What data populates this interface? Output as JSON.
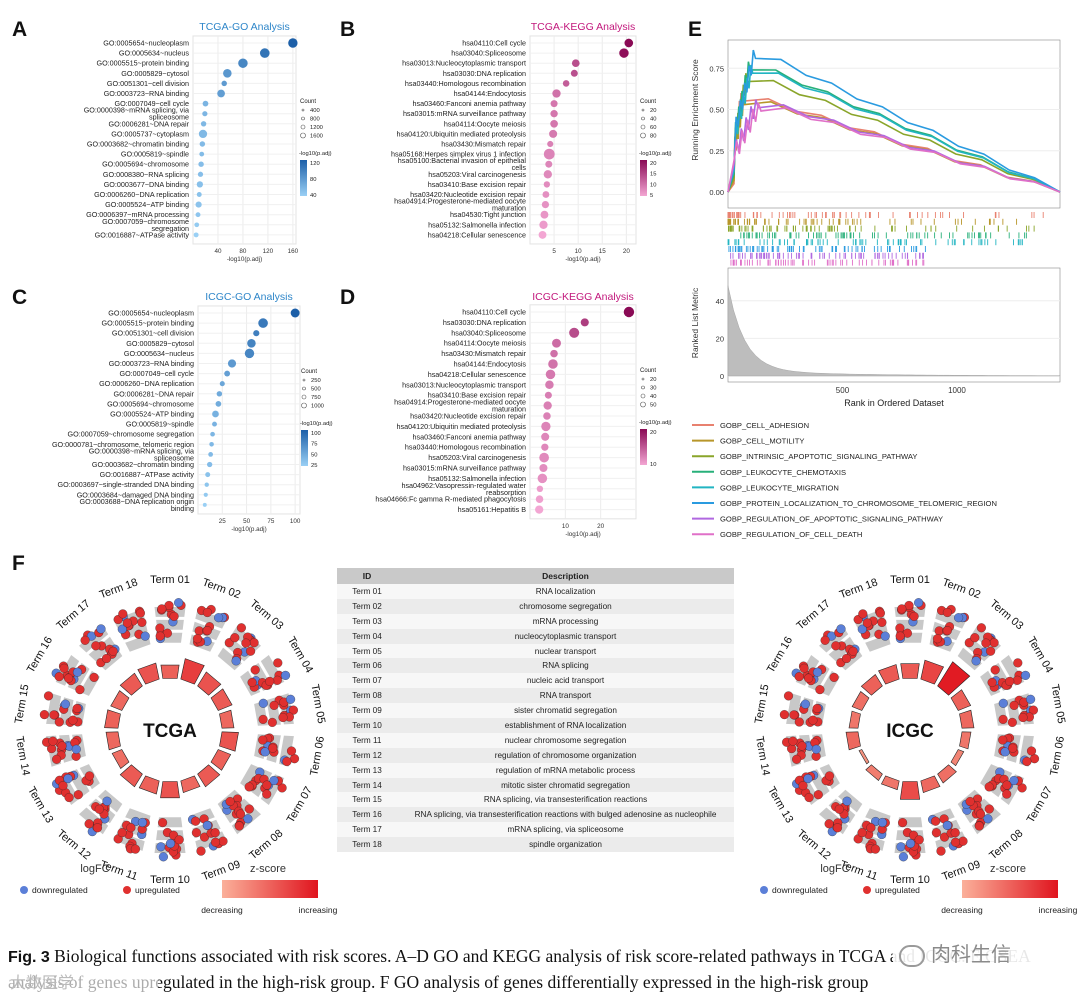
{
  "panel_labels": {
    "A": "A",
    "B": "B",
    "C": "C",
    "D": "D",
    "E": "E",
    "F": "F"
  },
  "dotplot_tcga_go": {
    "type": "scatter",
    "title": "TCGA-GO Analysis",
    "title_color": "#2e86c9",
    "xlabel": "-log10(p.adj)",
    "xlim": [
      0,
      165
    ],
    "xticks": [
      40,
      80,
      120,
      160
    ],
    "terms": [
      "GO:0005654~nucleoplasm",
      "GO:0005634~nucleus",
      "GO:0005515~protein binding",
      "GO:0005829~cytosol",
      "GO:0051301~cell division",
      "GO:0003723~RNA binding",
      "GO:0007049~cell cycle",
      "GO:0000398~mRNA splicing, via spliceosome",
      "GO:0006281~DNA repair",
      "GO:0005737~cytoplasm",
      "GO:0003682~chromatin binding",
      "GO:0005819~spindle",
      "GO:0005694~chromosome",
      "GO:0008380~RNA splicing",
      "GO:0003677~DNA binding",
      "GO:0006260~DNA replication",
      "GO:0005524~ATP binding",
      "GO:0006397~mRNA processing",
      "GO:0007059~chromosome segregation",
      "GO:0016887~ATPase activity"
    ],
    "values": [
      160,
      115,
      80,
      55,
      50,
      45,
      20,
      19,
      17,
      16,
      15,
      14,
      13,
      12,
      11,
      10,
      9,
      8,
      6,
      5
    ],
    "counts": [
      1550,
      1650,
      1600,
      1200,
      300,
      900,
      350,
      250,
      280,
      1100,
      300,
      180,
      290,
      260,
      480,
      200,
      450,
      200,
      170,
      200
    ],
    "legend_count_title": "Count",
    "legend_counts": [
      "400",
      "800",
      "1200",
      "1600"
    ],
    "legend_color_title": "-log10(p.adj)",
    "legend_color_ticks": [
      "120",
      "80",
      "40"
    ],
    "color_low": "#9ad0f5",
    "color_high": "#1c5fa8"
  },
  "dotplot_tcga_kegg": {
    "type": "scatter",
    "title": "TCGA-KEGG Analysis",
    "title_color": "#c2187c",
    "xlabel": "-log10(p.adj)",
    "xlim": [
      0,
      22
    ],
    "xticks": [
      5,
      10,
      15,
      20
    ],
    "terms": [
      "hsa04110:Cell cycle",
      "hsa03040:Spliceosome",
      "hsa03013:Nucleocytoplasmic transport",
      "hsa03030:DNA replication",
      "hsa03440:Homologous recombination",
      "hsa04144:Endocytosis",
      "hsa03460:Fanconi anemia pathway",
      "hsa03015:mRNA surveillance pathway",
      "hsa04114:Oocyte meiosis",
      "hsa04120:Ubiquitin mediated proteolysis",
      "hsa03430:Mismatch repair",
      "hsa05168:Herpes simplex virus 1 infection",
      "hsa05100:Bacterial invasion of epithelial cells",
      "hsa05203:Viral carcinogenesis",
      "hsa03410:Base excision repair",
      "hsa03420:Nucleotide excision repair",
      "hsa04914:Progesterone-mediated oocyte maturation",
      "hsa04530:Tight junction",
      "hsa05132:Salmonella infection",
      "hsa04218:Cellular senescence"
    ],
    "values": [
      20.5,
      19.5,
      9.5,
      9.2,
      7.5,
      5.5,
      5.0,
      5.0,
      5.0,
      4.8,
      4.2,
      4.0,
      3.9,
      3.7,
      3.5,
      3.3,
      3.2,
      3.0,
      2.8,
      2.6
    ],
    "counts": [
      55,
      70,
      40,
      30,
      25,
      50,
      30,
      35,
      40,
      45,
      20,
      100,
      30,
      50,
      22,
      28,
      33,
      42,
      50,
      42
    ],
    "legend_count_title": "Count",
    "legend_counts": [
      "20",
      "40",
      "60",
      "80"
    ],
    "legend_color_title": "-log10(p.adj)",
    "legend_color_ticks": [
      "20",
      "15",
      "10",
      "5"
    ],
    "color_low": "#f3a6d3",
    "color_high": "#8a0a55"
  },
  "dotplot_icgc_go": {
    "type": "scatter",
    "title": "ICGC-GO Analysis",
    "title_color": "#2e86c9",
    "xlabel": "-log10(p.adj)",
    "xlim": [
      0,
      105
    ],
    "xticks": [
      25,
      50,
      75,
      100
    ],
    "terms": [
      "GO:0005654~nucleoplasm",
      "GO:0005515~protein binding",
      "GO:0051301~cell division",
      "GO:0005829~cytosol",
      "GO:0005634~nucleus",
      "GO:0003723~RNA binding",
      "GO:0007049~cell cycle",
      "GO:0006260~DNA replication",
      "GO:0006281~DNA repair",
      "GO:0005694~chromosome",
      "GO:0005524~ATP binding",
      "GO:0005819~spindle",
      "GO:0007059~chromosome segregation",
      "GO:0000781~chromosome, telomeric region",
      "GO:0000398~mRNA splicing, via spliceosome",
      "GO:0003682~chromatin binding",
      "GO:0016887~ATPase activity",
      "GO:0003697~single-stranded DNA binding",
      "GO:0003684~damaged DNA binding",
      "GO:0003688~DNA replication origin binding"
    ],
    "values": [
      100,
      67,
      60,
      55,
      53,
      35,
      30,
      25,
      22,
      21,
      18,
      17,
      15,
      14,
      13,
      12,
      10,
      9,
      8,
      7
    ],
    "counts": [
      900,
      1100,
      300,
      800,
      1050,
      700,
      250,
      150,
      200,
      230,
      400,
      130,
      110,
      100,
      120,
      180,
      140,
      80,
      70,
      50
    ],
    "legend_count_title": "Count",
    "legend_counts": [
      "250",
      "500",
      "750",
      "1000"
    ],
    "legend_color_title": "-log10(p.adj)",
    "legend_color_ticks": [
      "100",
      "75",
      "50",
      "25"
    ],
    "color_low": "#9ad0f5",
    "color_high": "#1c5fa8"
  },
  "dotplot_icgc_kegg": {
    "type": "scatter",
    "title": "ICGC-KEGG Analysis",
    "title_color": "#c2187c",
    "xlabel": "-log10(p.adj)",
    "xlim": [
      0,
      30
    ],
    "xticks": [
      10,
      20
    ],
    "terms": [
      "hsa04110:Cell cycle",
      "hsa03030:DNA replication",
      "hsa03040:Spliceosome",
      "hsa04114:Oocyte meiosis",
      "hsa03430:Mismatch repair",
      "hsa04144:Endocytosis",
      "hsa04218:Cellular senescence",
      "hsa03013:Nucleocytoplasmic transport",
      "hsa03410:Base excision repair",
      "hsa04914:Progesterone-mediated oocyte maturation",
      "hsa03420:Nucleotide excision repair",
      "hsa04120:Ubiquitin mediated proteolysis",
      "hsa03460:Fanconi anemia pathway",
      "hsa03440:Homologous recombination",
      "hsa05203:Viral carcinogenesis",
      "hsa03015:mRNA surveillance pathway",
      "hsa05132:Salmonella infection",
      "hsa04962:Vasopressin-regulated water reabsorption",
      "hsa04666:Fc gamma R-mediated phagocytosis",
      "hsa05161:Hepatitis B"
    ],
    "values": [
      28,
      15.5,
      12.5,
      7.5,
      6.8,
      6.5,
      5.8,
      5.5,
      5.2,
      5.0,
      4.8,
      4.5,
      4.3,
      4.2,
      4.0,
      3.8,
      3.5,
      2.8,
      2.7,
      2.6
    ],
    "counts": [
      60,
      30,
      55,
      40,
      25,
      48,
      48,
      35,
      20,
      33,
      25,
      45,
      30,
      22,
      50,
      30,
      48,
      15,
      25,
      32
    ],
    "legend_count_title": "Count",
    "legend_counts": [
      "20",
      "30",
      "40",
      "50"
    ],
    "legend_color_title": "-log10(p.adj)",
    "legend_color_ticks": [
      "20",
      "10"
    ],
    "color_low": "#f3a6d3",
    "color_high": "#8a0a55"
  },
  "gsea": {
    "type": "line",
    "ylabel_top": "Running Enrichment Score",
    "ylabel_bottom": "Ranked List Metric",
    "xlabel": "Rank in Ordered Dataset",
    "yticks_top": [
      "0.00",
      "0.25",
      "0.50",
      "0.75"
    ],
    "yticks_bottom": [
      "0",
      "20",
      "40"
    ],
    "xticks": [
      "500",
      "1000"
    ],
    "xlim": [
      0,
      1450
    ],
    "series": [
      {
        "name": "GOBP_CELL_ADHESION",
        "color": "#e8816f",
        "peak": 0.6
      },
      {
        "name": "GOBP_CELL_MOTILITY",
        "color": "#b8962a",
        "peak": 0.58
      },
      {
        "name": "GOBP_INTRINSIC_APOPTOTIC_SIGNALING_PATHWAY",
        "color": "#8aa52a",
        "peak": 0.72
      },
      {
        "name": "GOBP_LEUKOCYTE_CHEMOTAXIS",
        "color": "#28b07a",
        "peak": 0.79
      },
      {
        "name": "GOBP_LEUKOCYTE_MIGRATION",
        "color": "#22b5c2",
        "peak": 0.77
      },
      {
        "name": "GOBP_PROTEIN_LOCALIZATION_TO_CHROMOSOME_TELOMERIC_REGION",
        "color": "#2a9be0",
        "peak": 0.86
      },
      {
        "name": "GOBP_REGULATION_OF_APOPTOTIC_SIGNALING_PATHWAY",
        "color": "#b068e0",
        "peak": 0.56
      },
      {
        "name": "GOBP_REGULATION_OF_CELL_DEATH",
        "color": "#e070c8",
        "peak": 0.54
      }
    ]
  },
  "term_table": {
    "headers": [
      "ID",
      "Description"
    ],
    "rows": [
      [
        "Term 01",
        "RNA localization"
      ],
      [
        "Term 02",
        "chromosome segregation"
      ],
      [
        "Term 03",
        "mRNA processing"
      ],
      [
        "Term 04",
        "nucleocytoplasmic transport"
      ],
      [
        "Term 05",
        "nuclear transport"
      ],
      [
        "Term 06",
        "RNA splicing"
      ],
      [
        "Term 07",
        "nucleic acid transport"
      ],
      [
        "Term 08",
        "RNA transport"
      ],
      [
        "Term 09",
        "sister chromatid segregation"
      ],
      [
        "Term 10",
        "establishment of RNA localization"
      ],
      [
        "Term 11",
        "nuclear chromosome segregation"
      ],
      [
        "Term 12",
        "regulation of chromosome organization"
      ],
      [
        "Term 13",
        "regulation of mRNA metabolic process"
      ],
      [
        "Term 14",
        "mitotic sister chromatid segregation"
      ],
      [
        "Term 15",
        "RNA splicing, via transesterification reactions"
      ],
      [
        "Term 16",
        "RNA splicing, via transesterification reactions with bulged adenosine as nucleophile"
      ],
      [
        "Term 17",
        "mRNA splicing, via spliceosome"
      ],
      [
        "Term 18",
        "spindle organization"
      ]
    ]
  },
  "circos": {
    "terms": [
      "Term 01",
      "Term 02",
      "Term 03",
      "Term 04",
      "Term 05",
      "Term 06",
      "Term 07",
      "Term 08",
      "Term 09",
      "Term 10",
      "Term 11",
      "Term 12",
      "Term 13",
      "Term 14",
      "Term 15",
      "Term 16",
      "Term 17",
      "Term 18"
    ],
    "tcga": {
      "label": "TCGA",
      "zscore": [
        0.45,
        0.7,
        0.55,
        0.5,
        0.4,
        0.55,
        0.45,
        0.5,
        0.4,
        0.55,
        0.45,
        0.5,
        0.35,
        0.4,
        0.45,
        0.4,
        0.5,
        0.55
      ]
    },
    "icgc": {
      "label": "ICGC",
      "zscore": [
        0.5,
        0.65,
        0.95,
        0.45,
        0.4,
        0.3,
        0.2,
        0.35,
        0.4,
        0.6,
        0.3,
        0.25,
        0.1,
        0.4,
        0.3,
        0.35,
        0.45,
        0.5
      ]
    },
    "legend": {
      "logfc_title": "logFC",
      "down": "downregulated",
      "up": "upregulated",
      "z_title": "z-score",
      "dec": "decreasing",
      "inc": "increasing",
      "down_color": "#5b7fd8",
      "up_color": "#e0302f"
    }
  },
  "caption": {
    "lead": "Fig. 3",
    "text": " Biological functions associated with risk scores. A–D GO and KEGG analysis of risk score-related pathways in TCGA and ICGC. E GSEA analysis of genes upregulated in the high-risk group. F GO analysis of genes differentially expressed in the high-risk group"
  },
  "watermarks": {
    "top": "肉科生信",
    "bottom": "大数医学"
  }
}
